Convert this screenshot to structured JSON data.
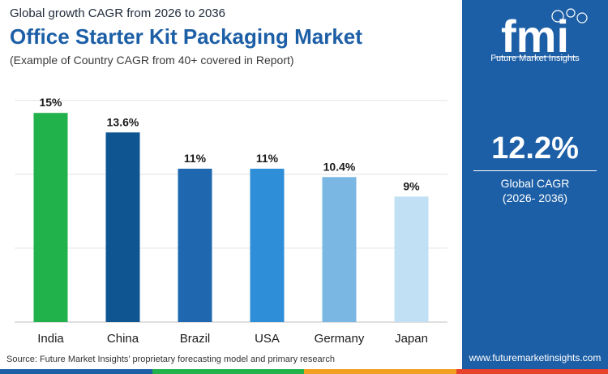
{
  "header": {
    "subtitle": "Global growth CAGR from 2026 to 2036",
    "title": "Office Starter Kit Packaging Market",
    "note": "(Example of Country CAGR from 40+ covered in Report)"
  },
  "chart_data": {
    "type": "bar",
    "categories": [
      "India",
      "China",
      "Brazil",
      "USA",
      "Germany",
      "Japan"
    ],
    "values": [
      15,
      13.6,
      11,
      11,
      10.4,
      9
    ],
    "value_labels": [
      "15%",
      "13.6%",
      "11%",
      "11%",
      "10.4%",
      "9%"
    ],
    "colors": [
      "#22b24c",
      "#0f5592",
      "#1f68b0",
      "#2f8ed8",
      "#7ab7e3",
      "#c1e0f4"
    ],
    "ylim": [
      0,
      16
    ],
    "gridlines": [
      0,
      5.3,
      10.6,
      15.9
    ],
    "grid": true,
    "xlabel": "",
    "ylabel": ""
  },
  "footer": {
    "source": "Source: Future Market Insights’ proprietary forecasting model and primary research",
    "strip_colors": [
      "#1d5fa6",
      "#22b24c",
      "#f0a01e",
      "#e8412c"
    ]
  },
  "sidebar": {
    "logo_letters": "fmi",
    "logo_name": "Future Market Insights",
    "cagr_value": "12.2%",
    "cagr_label": "Global CAGR",
    "cagr_period": "(2026- 2036)",
    "website": "www.futuremarketinsights.com"
  }
}
